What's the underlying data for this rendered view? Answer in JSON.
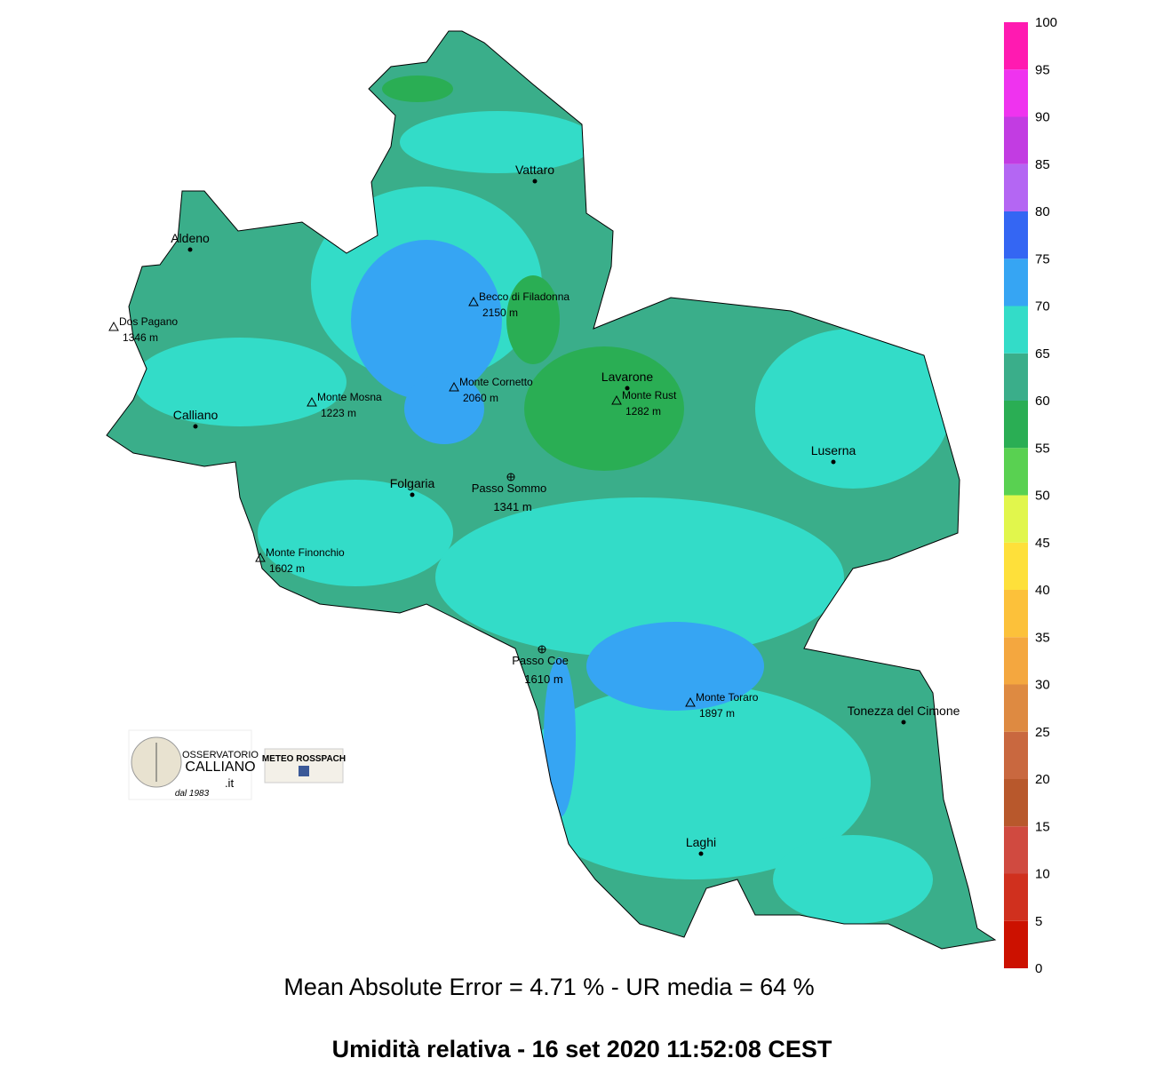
{
  "map": {
    "title": "Umidità relativa  -  16 set 2020 11:52:08  CEST",
    "subtitle": "Mean Absolute Error = 4.71 %  -  UR media = 64 %",
    "places": [
      {
        "name": "Vattaro",
        "kind": "town"
      },
      {
        "name": "Aldeno",
        "kind": "town"
      },
      {
        "name": "Dos Pagano",
        "elevation": "1346 m",
        "kind": "peak"
      },
      {
        "name": "Becco di Filadonna",
        "elevation": "2150 m",
        "kind": "peak"
      },
      {
        "name": "Lavarone",
        "kind": "town"
      },
      {
        "name": "Monte Rust",
        "elevation": "1282 m",
        "kind": "peak"
      },
      {
        "name": "Monte Cornetto",
        "elevation": "2060 m",
        "kind": "peak"
      },
      {
        "name": "Monte Mosna",
        "elevation": "1223 m",
        "kind": "peak"
      },
      {
        "name": "Calliano",
        "kind": "town"
      },
      {
        "name": "Luserna",
        "kind": "town"
      },
      {
        "name": "Passo Sommo",
        "elevation": "1341 m",
        "kind": "pass"
      },
      {
        "name": "Folgaria",
        "kind": "town"
      },
      {
        "name": "Monte Finonchio",
        "elevation": "1602 m",
        "kind": "peak"
      },
      {
        "name": "Passo Coe",
        "elevation": "1610 m",
        "kind": "pass"
      },
      {
        "name": "Monte Toraro",
        "elevation": "1897 m",
        "kind": "peak"
      },
      {
        "name": "Tonezza del Cimone",
        "kind": "town"
      },
      {
        "name": "Laghi",
        "kind": "town"
      }
    ],
    "colorbar": {
      "ticks": [
        0,
        5,
        10,
        15,
        20,
        25,
        30,
        35,
        40,
        45,
        50,
        55,
        60,
        65,
        70,
        75,
        80,
        85,
        90,
        95,
        100
      ],
      "colors": [
        "#cc1100",
        "#d0301e",
        "#d04a40",
        "#b8582c",
        "#c9683f",
        "#de8a41",
        "#f4a73f",
        "#fcc13a",
        "#fee03a",
        "#e1f64c",
        "#59d151",
        "#2aae54",
        "#3aae8a",
        "#33dcc8",
        "#36a5f3",
        "#3466f3",
        "#b466f3",
        "#c23ce2",
        "#ef33ef",
        "#ff1ab1"
      ]
    },
    "logos": {
      "observatory": [
        "OSSERVATORIO",
        "CALLIANO",
        ".it",
        "dal 1983"
      ],
      "meteo": "METEO ROSSPACH"
    }
  }
}
